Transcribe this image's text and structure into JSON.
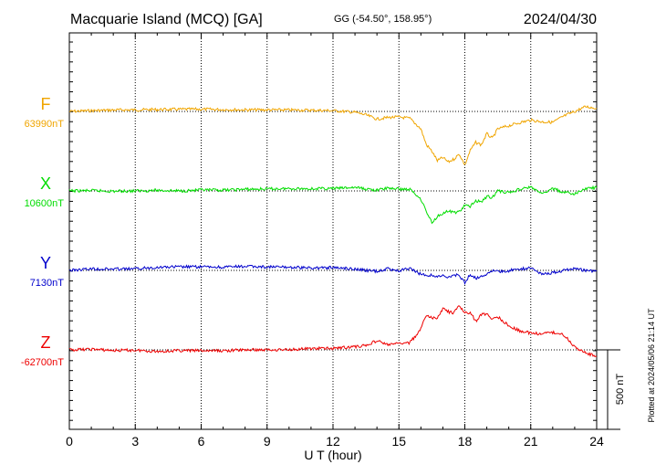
{
  "header": {
    "station": "Macquarie Island (MCQ)  [GA]",
    "coords": "GG (-54.50°, 158.95°)",
    "date": "2024/04/30"
  },
  "side_note": "Plotted at 2024/05/06 21:14 UT",
  "scale_bar": {
    "label": "500 nT",
    "value_nT": 500
  },
  "colors": {
    "F": "#f0a500",
    "X": "#00dd00",
    "Y": "#0000cc",
    "Z": "#ee0000",
    "grid": "#000000"
  },
  "chart_data": {
    "type": "line",
    "xlabel": "U T (hour)",
    "xlim": [
      0,
      24
    ],
    "x_ticks": [
      "0",
      "3",
      "6",
      "9",
      "12",
      "15",
      "18",
      "21",
      "24"
    ],
    "nT_per_division": 500,
    "x": [
      0,
      1,
      2,
      3,
      4,
      5,
      6,
      7,
      8,
      9,
      10,
      11,
      12,
      13,
      13.5,
      14,
      14.5,
      15,
      15.5,
      16,
      16.25,
      16.5,
      16.75,
      17,
      17.25,
      17.5,
      17.75,
      18,
      18.25,
      18.5,
      18.75,
      19,
      19.25,
      19.5,
      20,
      20.5,
      21,
      21.5,
      22,
      22.5,
      23,
      23.5,
      24
    ],
    "series": [
      {
        "name": "F",
        "baseline_label": "63990nT",
        "baseline": 63990,
        "values": [
          63990,
          63995,
          63999,
          64000,
          64002,
          64003,
          64004,
          64002,
          64000,
          64000,
          63999,
          63998,
          63995,
          63985,
          63968,
          63942,
          63952,
          63955,
          63946,
          63880,
          63780,
          63740,
          63680,
          63700,
          63672,
          63690,
          63722,
          63652,
          63745,
          63795,
          63780,
          63850,
          63820,
          63880,
          63900,
          63920,
          63935,
          63925,
          63922,
          63960,
          63990,
          64020,
          64010
        ]
      },
      {
        "name": "X",
        "baseline_label": "10600nT",
        "baseline": 10600,
        "values": [
          10600,
          10602,
          10598,
          10600,
          10604,
          10600,
          10605,
          10605,
          10610,
          10612,
          10615,
          10614,
          10615,
          10622,
          10612,
          10605,
          10618,
          10612,
          10610,
          10550,
          10470,
          10400,
          10440,
          10460,
          10472,
          10464,
          10470,
          10508,
          10502,
          10540,
          10530,
          10565,
          10560,
          10600,
          10590,
          10610,
          10625,
          10580,
          10615,
          10590,
          10580,
          10615,
          10620
        ]
      },
      {
        "name": "Y",
        "baseline_label": "7130nT",
        "baseline": 7130,
        "values": [
          7130,
          7140,
          7138,
          7140,
          7150,
          7152,
          7152,
          7150,
          7155,
          7152,
          7150,
          7145,
          7148,
          7140,
          7130,
          7125,
          7140,
          7128,
          7142,
          7105,
          7100,
          7100,
          7090,
          7095,
          7085,
          7105,
          7095,
          7055,
          7105,
          7080,
          7098,
          7105,
          7130,
          7120,
          7128,
          7140,
          7145,
          7110,
          7115,
          7130,
          7140,
          7130,
          7125
        ]
      },
      {
        "name": "Z",
        "baseline_label": "-62700nT",
        "baseline": -62700,
        "values": [
          -62700,
          -62696,
          -62704,
          -62702,
          -62710,
          -62705,
          -62705,
          -62706,
          -62700,
          -62700,
          -62698,
          -62692,
          -62690,
          -62680,
          -62672,
          -62642,
          -62668,
          -62660,
          -62655,
          -62570,
          -62480,
          -62500,
          -62500,
          -62440,
          -62460,
          -62470,
          -62420,
          -62470,
          -62465,
          -62520,
          -62480,
          -62470,
          -62510,
          -62490,
          -62550,
          -62580,
          -62595,
          -62600,
          -62590,
          -62605,
          -62680,
          -62720,
          -62740
        ]
      }
    ]
  }
}
